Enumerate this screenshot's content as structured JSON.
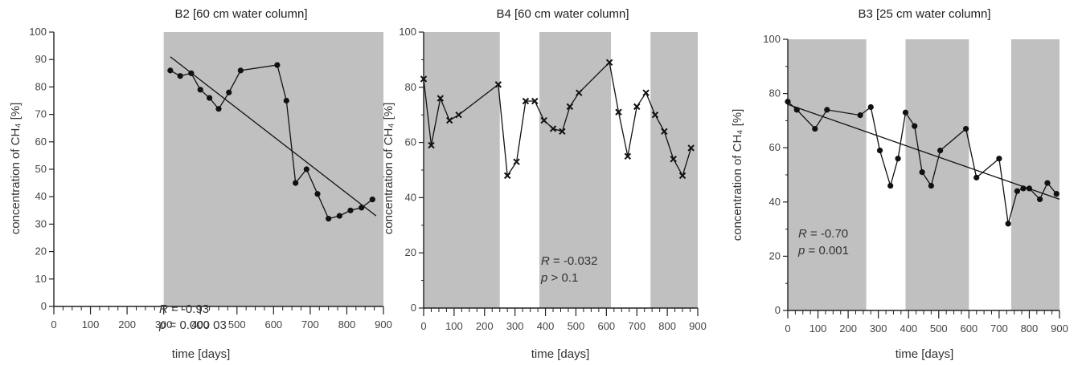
{
  "chart_data": [
    {
      "type": "line",
      "title": "B2 [60 cm water column]",
      "xlabel": "time [days]",
      "ylabel": "concentration of CH₄ [%]",
      "xlim": [
        0,
        900
      ],
      "ylim": [
        0,
        100
      ],
      "xticks": [
        0,
        100,
        200,
        300,
        400,
        500,
        600,
        700,
        800,
        900
      ],
      "yticks": [
        0,
        10,
        20,
        30,
        40,
        50,
        60,
        70,
        80,
        90,
        100
      ],
      "xtick_labels": [
        "0",
        "100",
        "200",
        "300",
        "400",
        "500",
        "600",
        "700",
        "800",
        "900"
      ],
      "ytick_labels": [
        "0",
        "10",
        "20",
        "30",
        "40",
        "50",
        "60",
        "70",
        "80",
        "90",
        "100"
      ],
      "shaded_x": [
        [
          300,
          900
        ]
      ],
      "grid": false,
      "series": [
        {
          "x": [
            318,
            345,
            375,
            400,
            425,
            450,
            478,
            510,
            610,
            635,
            660,
            690,
            720,
            750,
            780,
            810,
            840,
            870
          ],
          "y": [
            86,
            84,
            85,
            79,
            76,
            72,
            78,
            86,
            88,
            75,
            45,
            50,
            41,
            32,
            33,
            35,
            36,
            39
          ]
        }
      ],
      "trendline": {
        "x": [
          318,
          880
        ],
        "y": [
          91,
          33
        ]
      },
      "annotations": [
        {
          "italic": "R",
          "text": " = -0.93"
        },
        {
          "italic": "p",
          "text": " = 0.000 03"
        }
      ]
    },
    {
      "type": "line",
      "title": "B4 [60 cm water column]",
      "xlabel": "time [days]",
      "ylabel": "concentration of CH₄ [%]",
      "xlim": [
        0,
        900
      ],
      "ylim": [
        0,
        100
      ],
      "xticks": [
        0,
        100,
        200,
        300,
        400,
        500,
        600,
        700,
        800,
        900
      ],
      "yticks": [
        0,
        20,
        40,
        60,
        80,
        100
      ],
      "xtick_labels": [
        "0",
        "100",
        "200",
        "300",
        "400",
        "500",
        "600",
        "700",
        "800",
        "900"
      ],
      "ytick_labels": [
        "0",
        "20",
        "40",
        "60",
        "80",
        "100"
      ],
      "shaded_x": [
        [
          0,
          250
        ],
        [
          380,
          615
        ],
        [
          745,
          900
        ]
      ],
      "grid": false,
      "series": [
        {
          "x": [
            0,
            25,
            55,
            85,
            115,
            245,
            275,
            305,
            335,
            365,
            395,
            425,
            455,
            480,
            510,
            610,
            640,
            670,
            700,
            730,
            760,
            790,
            820,
            850,
            878
          ],
          "y": [
            83,
            59,
            76,
            68,
            70,
            81,
            48,
            53,
            75,
            75,
            68,
            65,
            64,
            73,
            78,
            89,
            71,
            55,
            73,
            78,
            70,
            64,
            54,
            48,
            58
          ]
        }
      ],
      "annotations": [
        {
          "italic": "R",
          "text": " = -0.032"
        },
        {
          "italic": "p",
          "text": " > 0.1"
        }
      ]
    },
    {
      "type": "line",
      "title": "B3 [25 cm water column]",
      "xlabel": "time [days]",
      "ylabel": "concentration of CH₄ [%]",
      "xlim": [
        0,
        900
      ],
      "ylim": [
        0,
        100
      ],
      "xticks": [
        0,
        100,
        200,
        300,
        400,
        500,
        600,
        700,
        800,
        900
      ],
      "yticks": [
        0,
        20,
        40,
        60,
        80,
        100
      ],
      "xtick_labels": [
        "0",
        "100",
        "200",
        "300",
        "400",
        "500",
        "600",
        "700",
        "800",
        "900"
      ],
      "ytick_labels": [
        "0",
        "20",
        "40",
        "60",
        "80",
        "100"
      ],
      "shaded_x": [
        [
          0,
          260
        ],
        [
          390,
          600
        ],
        [
          740,
          900
        ]
      ],
      "grid": false,
      "series": [
        {
          "x": [
            0,
            30,
            90,
            130,
            240,
            275,
            305,
            340,
            365,
            390,
            420,
            445,
            475,
            505,
            590,
            625,
            700,
            730,
            760,
            780,
            800,
            835,
            860,
            890
          ],
          "y": [
            77,
            74,
            67,
            74,
            72,
            75,
            59,
            46,
            56,
            73,
            68,
            51,
            46,
            59,
            67,
            49,
            56,
            32,
            44,
            45,
            45,
            41,
            47,
            43
          ]
        }
      ],
      "trendline": {
        "x": [
          0,
          900
        ],
        "y": [
          76,
          41
        ]
      },
      "annotations": [
        {
          "italic": "R",
          "text": " = -0.70"
        },
        {
          "italic": "p",
          "text": " = 0.001"
        }
      ]
    }
  ]
}
